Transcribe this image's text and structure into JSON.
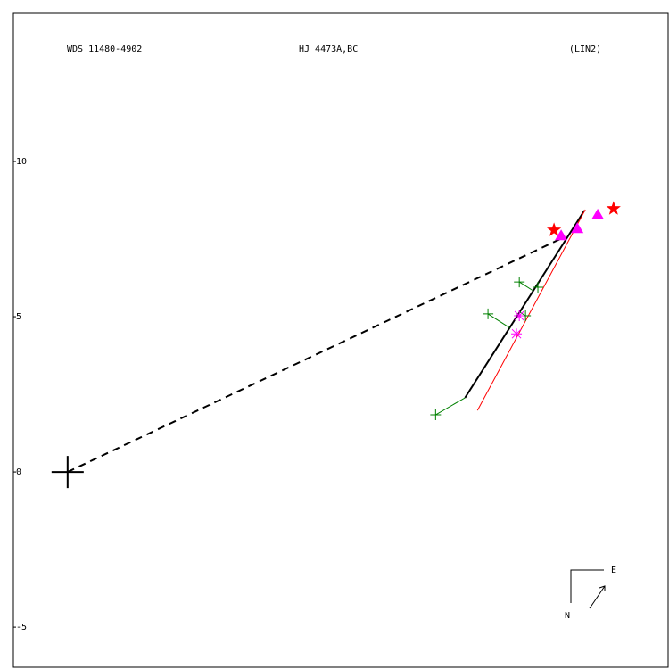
{
  "chart_data": {
    "type": "scatter",
    "labels": {
      "wds": "WDS 11480-4902",
      "name": "HJ 4473A,BC",
      "grade": "(LIN2)"
    },
    "compass": {
      "east": "E",
      "north": "N"
    },
    "xlim": [
      -1.75,
      19.37
    ],
    "ylim": [
      -6.29,
      14.77
    ],
    "yticks": [
      10,
      5,
      0,
      -5
    ],
    "lines": [
      {
        "color": "#000000",
        "style": "dashed",
        "width": 2,
        "x": [
          0,
          15.95
        ],
        "y": [
          0,
          7.53
        ]
      },
      {
        "color": "#000000",
        "style": "solid",
        "width": 2,
        "x": [
          12.82,
          16.67
        ],
        "y": [
          2.39,
          8.42
        ]
      },
      {
        "color": "#ff0000",
        "style": "solid",
        "width": 1,
        "x": [
          13.22,
          16.7
        ],
        "y": [
          1.98,
          8.45
        ]
      }
    ],
    "series": [
      {
        "color": "#000000",
        "marker": "big-plus",
        "x": [
          0
        ],
        "y": [
          0
        ]
      },
      {
        "color": "#008000",
        "marker": "plus",
        "residuals": true,
        "x": [
          11.87,
          13.56,
          14.57,
          14.77,
          15.17
        ],
        "y": [
          1.84,
          5.09,
          6.12,
          5.03,
          5.95
        ]
      },
      {
        "color": "#ff00ff",
        "marker": "asterisk",
        "x": [
          14.57,
          14.48
        ],
        "y": [
          5.03,
          4.45
        ]
      },
      {
        "color": "#ff0000",
        "marker": "star",
        "x": [
          15.69,
          17.61
        ],
        "y": [
          7.79,
          8.48
        ]
      },
      {
        "color": "#ff00ff",
        "marker": "triangle",
        "x": [
          15.92,
          16.44,
          17.1
        ],
        "y": [
          7.61,
          7.84,
          8.28
        ]
      }
    ]
  }
}
